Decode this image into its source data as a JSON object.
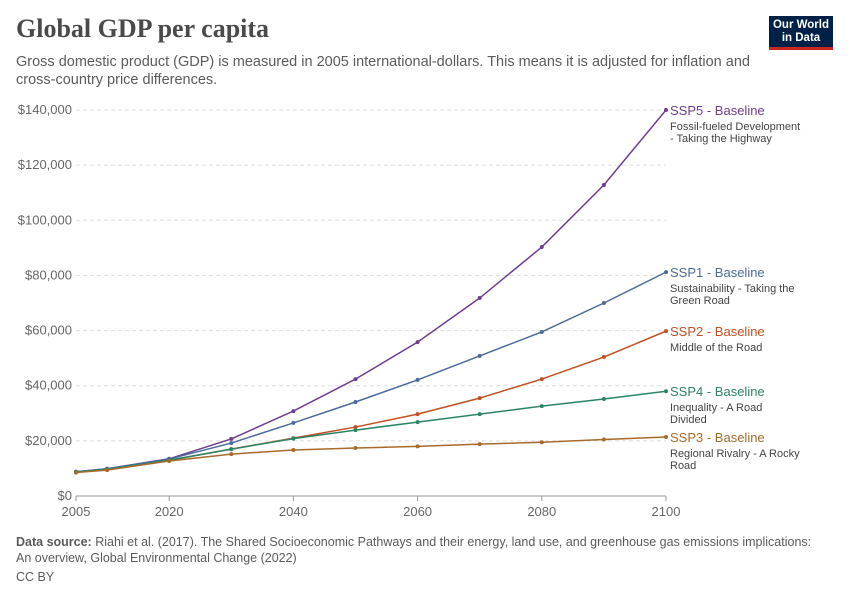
{
  "title": "Global GDP per capita",
  "subtitle": "Gross domestic product (GDP) is measured in 2005 international-dollars. This means it is adjusted for inflation and cross-country price differences.",
  "logo": "Our World in Data",
  "footer": {
    "label": "Data source:",
    "text": " Riahi et al. (2017). The Shared Socioeconomic Pathways and their energy, land use, and greenhouse gas emissions implications: An overview, Global Environmental Change (2022)",
    "license": "CC BY"
  },
  "chart_data": {
    "type": "line",
    "title": "Global GDP per capita",
    "x": [
      2005,
      2010,
      2020,
      2030,
      2040,
      2050,
      2060,
      2070,
      2080,
      2090,
      2100
    ],
    "xlim": [
      2005,
      2100
    ],
    "ylim": [
      0,
      140000
    ],
    "xticks": [
      "2005",
      "2020",
      "2040",
      "2060",
      "2080",
      "2100"
    ],
    "xtick_values": [
      2005,
      2020,
      2040,
      2060,
      2080,
      2100
    ],
    "yticks": [
      "$0",
      "$20,000",
      "$40,000",
      "$60,000",
      "$80,000",
      "$100,000",
      "$120,000",
      "$140,000"
    ],
    "ytick_values": [
      0,
      20000,
      40000,
      60000,
      80000,
      100000,
      120000,
      140000
    ],
    "grid": "horizontal dashed",
    "legend": "right, line-end labels",
    "series": [
      {
        "name": "SSP5 - Baseline",
        "desc": [
          "Fossil-fueled Development",
          "- Taking the Highway"
        ],
        "color": "#6d3e91",
        "values": [
          8800,
          9900,
          13500,
          20700,
          30800,
          42400,
          55800,
          71800,
          90300,
          112800,
          140000
        ]
      },
      {
        "name": "SSP1 - Baseline",
        "desc": [
          "Sustainability - Taking the",
          "Green Road"
        ],
        "color": "#4c6a9c",
        "values": [
          8800,
          9900,
          13400,
          19200,
          26500,
          34100,
          42100,
          50800,
          59500,
          70000,
          81200
        ]
      },
      {
        "name": "SSP2 - Baseline",
        "desc": [
          "Middle of the Road"
        ],
        "color": "#c15022",
        "values": [
          8600,
          9600,
          12900,
          17000,
          21000,
          25000,
          29700,
          35500,
          42400,
          50400,
          59800
        ]
      },
      {
        "name": "SSP4 - Baseline",
        "desc": [
          "Inequality - A Road",
          "Divided"
        ],
        "color": "#2c8465",
        "values": [
          8700,
          9700,
          13000,
          17000,
          20800,
          23900,
          26800,
          29700,
          32600,
          35200,
          38000
        ]
      },
      {
        "name": "SSP3 - Baseline",
        "desc": [
          "Regional Rivalry - A Rocky",
          "Road"
        ],
        "color": "#a86a2b",
        "values": [
          8500,
          9400,
          12700,
          15200,
          16700,
          17400,
          18000,
          18800,
          19500,
          20500,
          21400
        ]
      }
    ]
  }
}
